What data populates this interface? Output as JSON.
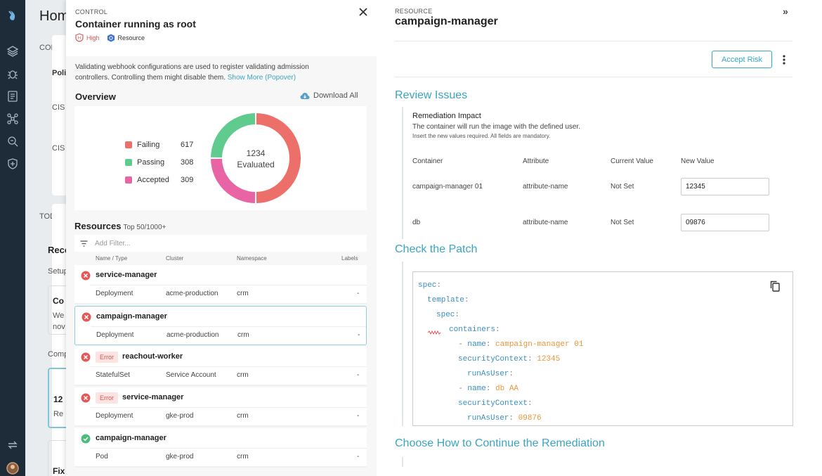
{
  "home": {
    "title": "Hom",
    "section1": "COMPLI",
    "col1": "Polic",
    "cis1": "CIS /",
    "cis2": "CIS",
    "todo": "TODO",
    "reco": "Reco",
    "setup": "Setup",
    "cardline1": "Co",
    "cardline2": "We",
    "cardline3": "nov",
    "comp": "Comp",
    "num": "12",
    "re": "Re",
    "fix": "Fix"
  },
  "control": {
    "kicker": "CONTROL",
    "title": "Container running as root",
    "severity": "High",
    "type_badge": "Resource",
    "description": "Validating webhook configurations are used to register validating admission controllers. Controlling them might disable them.",
    "show_more": "Show More (Popover)",
    "overview_title": "Overview",
    "download_label": "Download All",
    "legend": [
      {
        "label": "Failing",
        "value": "617",
        "color": "#ec6f6a"
      },
      {
        "label": "Passing",
        "value": "308",
        "color": "#5fcb8f"
      },
      {
        "label": "Accepted",
        "value": "309",
        "color": "#e964a4"
      }
    ],
    "donut_total": "1234",
    "donut_caption": "Evaluated",
    "resources_title": "Resources",
    "resources_sub": "Top 50/1000+",
    "filter_placeholder": "Add Filter...",
    "columns": [
      "Name / Type",
      "Cluster",
      "Namespace",
      "Labels"
    ],
    "rows": [
      {
        "status": "fail",
        "badge": "",
        "name": "service-manager",
        "type": "Deployment",
        "cluster": "acme-production",
        "namespace": "crm",
        "labels": "-"
      },
      {
        "status": "fail",
        "badge": "",
        "name": "campaign-manager",
        "type": "Deployment",
        "cluster": "acme-production",
        "namespace": "crm",
        "labels": "-"
      },
      {
        "status": "fail",
        "badge": "Error",
        "name": "reachout-worker",
        "type": "StatefulSet",
        "cluster": "Service Account",
        "namespace": "crm",
        "labels": "-"
      },
      {
        "status": "fail",
        "badge": "Error",
        "name": "service-manager",
        "type": "Deployment",
        "cluster": "gke-prod",
        "namespace": "crm",
        "labels": "-"
      },
      {
        "status": "pass",
        "badge": "",
        "name": "campaign-manager",
        "type": "Pod",
        "cluster": "gke-prod",
        "namespace": "crm",
        "labels": "-"
      }
    ]
  },
  "resource": {
    "kicker": "RESOURCE",
    "title": "campaign-manager",
    "collapse": "»",
    "accept_label": "Accept Risk",
    "review_title": "Review Issues",
    "impact_title": "Remediation Impact",
    "impact_desc": "The container will run the image with the defined user.",
    "impact_note": "Insert the new values required. All fields are mandatory.",
    "table_headers": [
      "Container",
      "Attribute",
      "Current Value",
      "New Value"
    ],
    "table_rows": [
      {
        "container": "campaign-manager 01",
        "attribute": "attribute-name",
        "current": "Not Set",
        "new": "12345"
      },
      {
        "container": "db",
        "attribute": "attribute-name",
        "current": "Not Set",
        "new": "09876"
      }
    ],
    "patch_title": "Check the Patch",
    "patch": {
      "spec": "spec",
      "template": "template",
      "spec2": "spec",
      "containers": "containers",
      "name_key": "name",
      "name1": "campaign-manager 01",
      "sc_key": "securityContext",
      "sc1": "12345",
      "run_key": "runAsUser",
      "name2": "db AA",
      "run2": "09876"
    },
    "continue_title": "Choose How to Continue the Remediation"
  }
}
